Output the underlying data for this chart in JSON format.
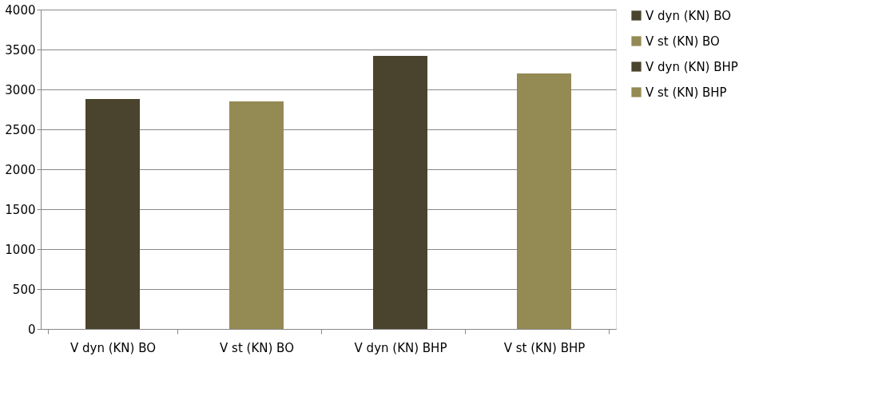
{
  "chart_data": {
    "type": "bar",
    "categories": [
      "V dyn (KN) BO",
      "V st (KN) BO",
      "V dyn (KN) BHP",
      "V st (KN) BHP"
    ],
    "series": [
      {
        "name": "V dyn (KN) BO",
        "color": "#4a432d",
        "values": [
          2880,
          null,
          null,
          null
        ]
      },
      {
        "name": "V st (KN) BO",
        "color": "#948a54",
        "values": [
          null,
          2850,
          null,
          null
        ]
      },
      {
        "name": "V dyn (KN) BHP",
        "color": "#4a432d",
        "values": [
          null,
          null,
          3420,
          null
        ]
      },
      {
        "name": "V st (KN) BHP",
        "color": "#948a54",
        "values": [
          null,
          null,
          null,
          3200
        ]
      }
    ],
    "ylim": [
      0,
      4000
    ],
    "yticks": [
      0,
      500,
      1000,
      1500,
      2000,
      2500,
      3000,
      3500,
      4000
    ],
    "grid": "y",
    "legend": "right"
  }
}
